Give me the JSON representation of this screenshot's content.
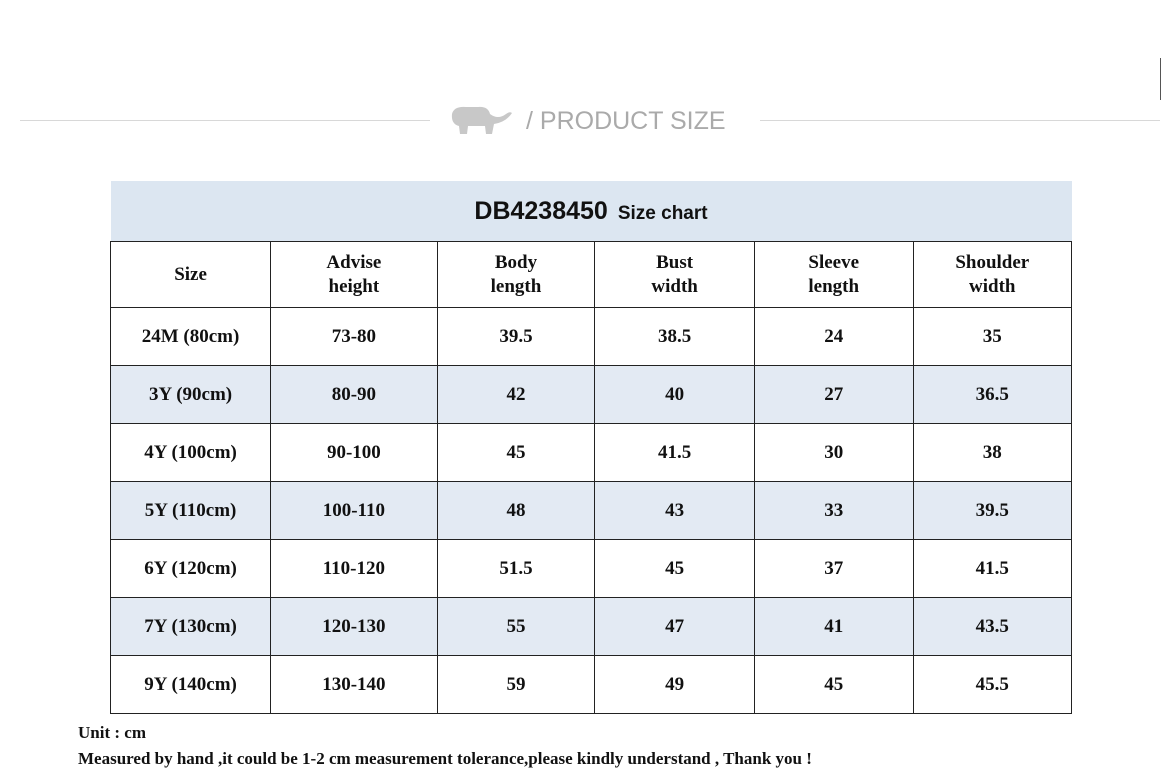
{
  "section_heading": "/ PRODUCT SIZE",
  "table": {
    "code": "DB4238450",
    "subtitle": "Size chart",
    "headers": [
      [
        "Size",
        ""
      ],
      [
        "Advise",
        "height"
      ],
      [
        "Body",
        "length"
      ],
      [
        "Bust",
        "width"
      ],
      [
        "Sleeve",
        "length"
      ],
      [
        "Shoulder",
        "width"
      ]
    ],
    "rows": [
      [
        "24M (80cm)",
        "73-80",
        "39.5",
        "38.5",
        "24",
        "35"
      ],
      [
        "3Y (90cm)",
        "80-90",
        "42",
        "40",
        "27",
        "36.5"
      ],
      [
        "4Y (100cm)",
        "90-100",
        "45",
        "41.5",
        "30",
        "38"
      ],
      [
        "5Y (110cm)",
        "100-110",
        "48",
        "43",
        "33",
        "39.5"
      ],
      [
        "6Y (120cm)",
        "110-120",
        "51.5",
        "45",
        "37",
        "41.5"
      ],
      [
        "7Y (130cm)",
        "120-130",
        "55",
        "47",
        "41",
        "43.5"
      ],
      [
        "9Y (140cm)",
        "130-140",
        "59",
        "49",
        "45",
        "45.5"
      ]
    ]
  },
  "notes": {
    "unit": "Unit : cm",
    "tolerance": "Measured by hand ,it could be 1-2 cm measurement tolerance,please kindly understand , Thank you !"
  },
  "colors": {
    "header_bg": "#dce6f1",
    "alt_row_bg": "#e3eaf3"
  }
}
